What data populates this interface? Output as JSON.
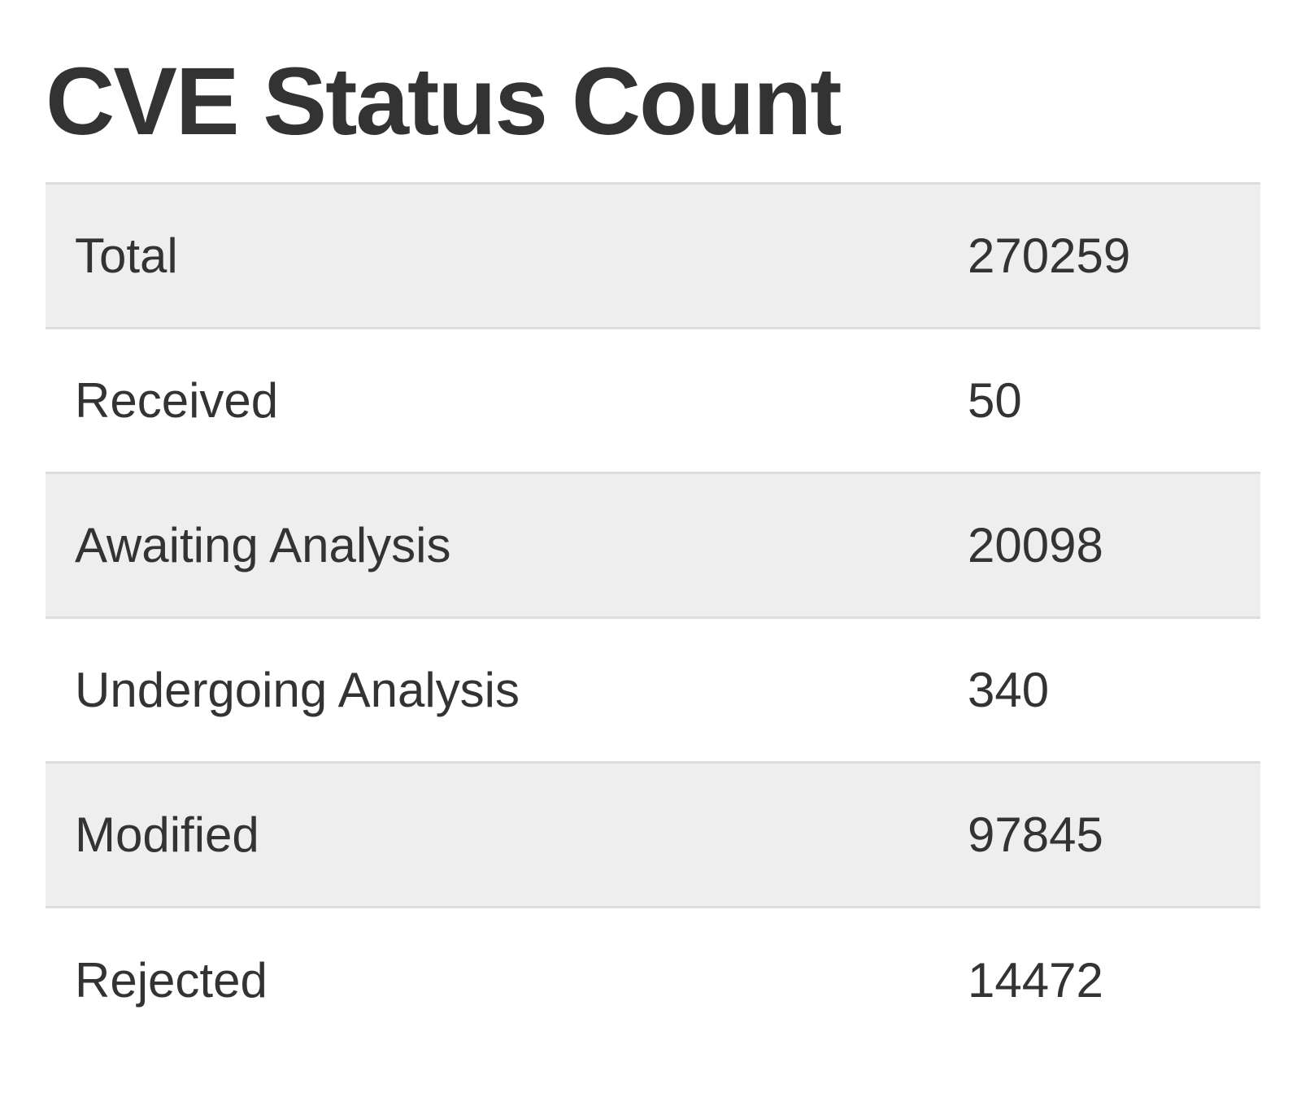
{
  "header": {
    "title": "CVE Status Count"
  },
  "table": {
    "rows": [
      [
        "Total",
        270259
      ],
      [
        "Received",
        50
      ],
      [
        "Awaiting Analysis",
        20098
      ],
      [
        "Undergoing Analysis",
        340
      ],
      [
        "Modified",
        97845
      ],
      [
        "Rejected",
        14472
      ]
    ]
  }
}
